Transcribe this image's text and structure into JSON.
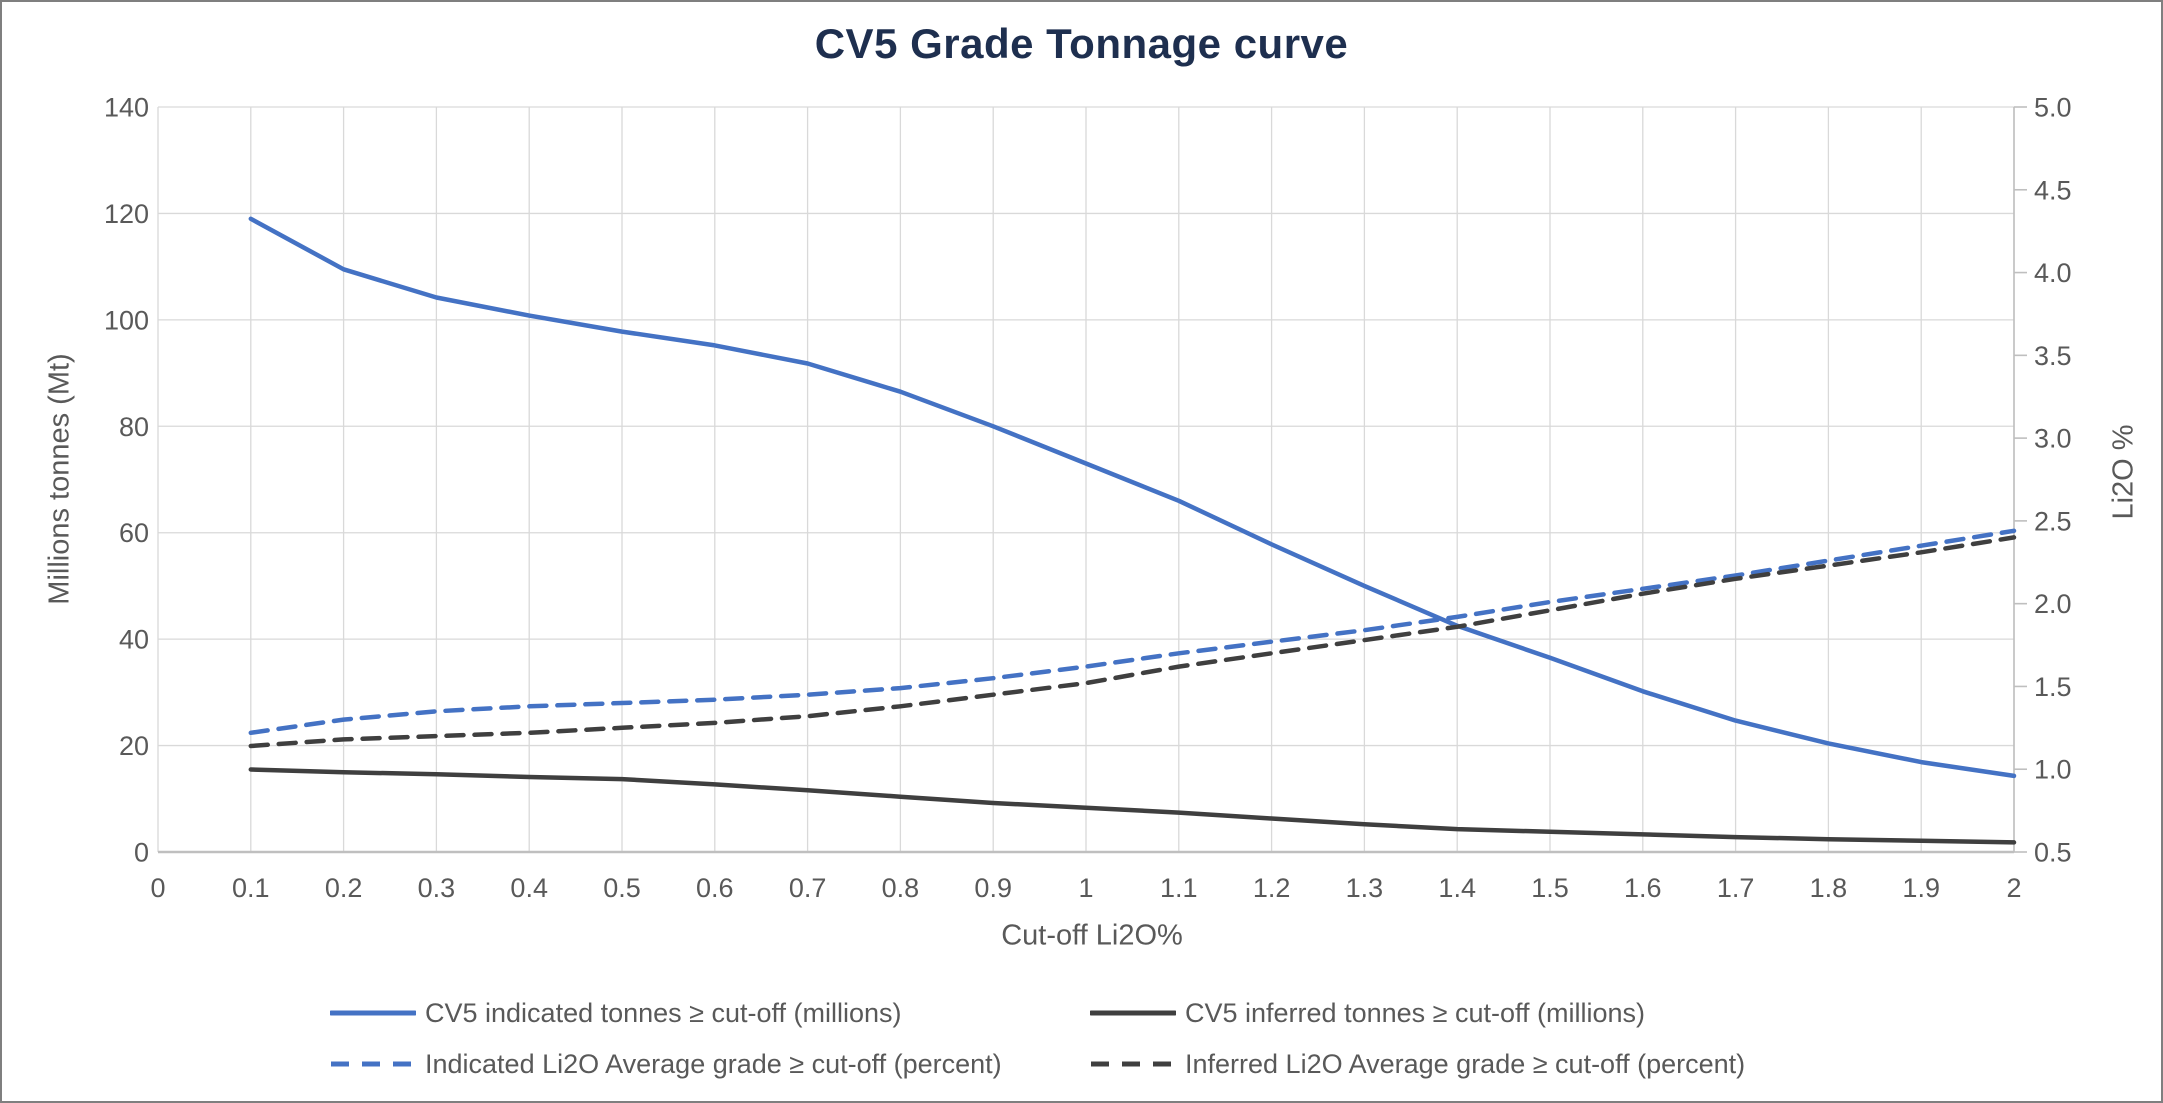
{
  "title": "CV5 Grade Tonnage curve",
  "colors": {
    "title_text": "#1e2f4f",
    "axis_text": "#595959",
    "grid": "#d9d9d9",
    "axis_line": "#bfbfbf",
    "indicated_blue": "#4472c4",
    "inferred_dark": "#3f3f3f",
    "background": "#ffffff",
    "frame_border": "#7f7f7f"
  },
  "chart_data": {
    "type": "line",
    "title": "CV5 Grade Tonnage curve",
    "grid": true,
    "legend_position": "bottom",
    "x": [
      0.1,
      0.2,
      0.3,
      0.4,
      0.5,
      0.6,
      0.7,
      0.8,
      0.9,
      1.0,
      1.1,
      1.2,
      1.3,
      1.4,
      1.5,
      1.6,
      1.7,
      1.8,
      1.9,
      2.0
    ],
    "x_axis": {
      "label": "Cut-off Li2O%",
      "min": 0,
      "max": 2,
      "ticks": [
        {
          "value": 0,
          "label": "0"
        },
        {
          "value": 0.1,
          "label": "0.1"
        },
        {
          "value": 0.2,
          "label": "0.2"
        },
        {
          "value": 0.3,
          "label": "0.3"
        },
        {
          "value": 0.4,
          "label": "0.4"
        },
        {
          "value": 0.5,
          "label": "0.5"
        },
        {
          "value": 0.6,
          "label": "0.6"
        },
        {
          "value": 0.7,
          "label": "0.7"
        },
        {
          "value": 0.8,
          "label": "0.8"
        },
        {
          "value": 0.9,
          "label": "0.9"
        },
        {
          "value": 1.0,
          "label": "1"
        },
        {
          "value": 1.1,
          "label": "1.1"
        },
        {
          "value": 1.2,
          "label": "1.2"
        },
        {
          "value": 1.3,
          "label": "1.3"
        },
        {
          "value": 1.4,
          "label": "1.4"
        },
        {
          "value": 1.5,
          "label": "1.5"
        },
        {
          "value": 1.6,
          "label": "1.6"
        },
        {
          "value": 1.7,
          "label": "1.7"
        },
        {
          "value": 1.8,
          "label": "1.8"
        },
        {
          "value": 1.9,
          "label": "1.9"
        },
        {
          "value": 2.0,
          "label": "2"
        }
      ]
    },
    "y_left_axis": {
      "label": "Millions tonnes (Mt)",
      "min": 0,
      "max": 140,
      "ticks": [
        {
          "value": 0,
          "label": "0"
        },
        {
          "value": 20,
          "label": "20"
        },
        {
          "value": 40,
          "label": "40"
        },
        {
          "value": 60,
          "label": "60"
        },
        {
          "value": 80,
          "label": "80"
        },
        {
          "value": 100,
          "label": "100"
        },
        {
          "value": 120,
          "label": "120"
        },
        {
          "value": 140,
          "label": "140"
        }
      ]
    },
    "y_right_axis": {
      "label": "Li2O %",
      "min": 0.5,
      "max": 5.0,
      "ticks": [
        {
          "value": 0.5,
          "label": "0.5"
        },
        {
          "value": 1.0,
          "label": "1.0"
        },
        {
          "value": 1.5,
          "label": "1.5"
        },
        {
          "value": 2.0,
          "label": "2.0"
        },
        {
          "value": 2.5,
          "label": "2.5"
        },
        {
          "value": 3.0,
          "label": "3.0"
        },
        {
          "value": 3.5,
          "label": "3.5"
        },
        {
          "value": 4.0,
          "label": "4.0"
        },
        {
          "value": 4.5,
          "label": "4.5"
        },
        {
          "value": 5.0,
          "label": "5.0"
        }
      ]
    },
    "series": [
      {
        "id": "indicated-tonnes",
        "name": "CV5 indicated tonnes ≥ cut-off (millions)",
        "axis": "left",
        "style": "solid",
        "color": "#4472c4",
        "values": [
          119.0,
          109.5,
          104.2,
          100.8,
          97.8,
          95.2,
          91.8,
          86.5,
          80.0,
          73.0,
          66.0,
          57.8,
          50.0,
          42.5,
          36.5,
          30.2,
          24.7,
          20.4,
          16.9,
          14.3
        ]
      },
      {
        "id": "inferred-tonnes",
        "name": "CV5 inferred tonnes ≥ cut-off (millions)",
        "axis": "left",
        "style": "solid",
        "color": "#3f3f3f",
        "values": [
          15.5,
          15.0,
          14.6,
          14.1,
          13.7,
          12.7,
          11.6,
          10.4,
          9.2,
          8.3,
          7.4,
          6.3,
          5.2,
          4.3,
          3.8,
          3.3,
          2.8,
          2.4,
          2.1,
          1.8
        ]
      },
      {
        "id": "indicated-grade",
        "name": "Indicated Li2O Average grade ≥ cut-off (percent)",
        "axis": "right",
        "style": "dashed",
        "color": "#4472c4",
        "values": [
          1.22,
          1.3,
          1.35,
          1.38,
          1.4,
          1.42,
          1.45,
          1.49,
          1.55,
          1.62,
          1.7,
          1.77,
          1.84,
          1.92,
          2.01,
          2.09,
          2.17,
          2.26,
          2.35,
          2.44
        ]
      },
      {
        "id": "inferred-grade",
        "name": "Inferred Li2O Average grade ≥ cut-off (percent)",
        "axis": "right",
        "style": "dashed",
        "color": "#3f3f3f",
        "values": [
          1.14,
          1.18,
          1.2,
          1.22,
          1.25,
          1.28,
          1.32,
          1.38,
          1.45,
          1.52,
          1.62,
          1.7,
          1.78,
          1.86,
          1.96,
          2.06,
          2.15,
          2.23,
          2.31,
          2.4
        ]
      }
    ]
  }
}
